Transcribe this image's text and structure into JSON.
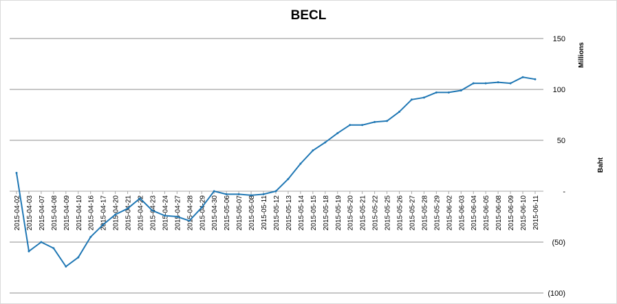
{
  "chart_data": {
    "type": "line",
    "title": "BECL",
    "ylabel": "Baht",
    "y_unit": "Millions",
    "ylim": [
      -100,
      150
    ],
    "y_ticks": [
      150,
      100,
      50,
      0,
      -50,
      -100
    ],
    "y_tick_labels": [
      "150",
      "100",
      "50",
      "-",
      "(50)",
      "(100)"
    ],
    "grid": "horizontal",
    "legend": "none",
    "line_color": "#1f77b4",
    "categories": [
      "2015-04-02",
      "2015-04-03",
      "2015-04-07",
      "2015-04-08",
      "2015-04-09",
      "2015-04-10",
      "2015-04-16",
      "2015-04-17",
      "2015-04-20",
      "2015-04-21",
      "2015-04-22",
      "2015-04-23",
      "2015-04-24",
      "2015-04-27",
      "2015-04-28",
      "2015-04-29",
      "2015-04-30",
      "2015-05-06",
      "2015-05-07",
      "2015-05-08",
      "2015-05-11",
      "2015-05-12",
      "2015-05-13",
      "2015-05-14",
      "2015-05-15",
      "2015-05-18",
      "2015-05-19",
      "2015-05-20",
      "2015-05-21",
      "2015-05-22",
      "2015-05-25",
      "2015-05-26",
      "2015-05-27",
      "2015-05-28",
      "2015-05-29",
      "2015-06-02",
      "2015-06-03",
      "2015-06-04",
      "2015-06-05",
      "2015-06-08",
      "2015-06-09",
      "2015-06-10",
      "2015-06-11"
    ],
    "values": [
      18,
      -59,
      -50,
      -56,
      -74,
      -65,
      -45,
      -33,
      -23,
      -17,
      -7,
      -19,
      -24,
      -25,
      -29,
      -16,
      0,
      -3,
      -3,
      -4,
      -3,
      0,
      12,
      27,
      40,
      48,
      57,
      65,
      65,
      68,
      69,
      78,
      90,
      92,
      97,
      97,
      99,
      106,
      106,
      107,
      106,
      112,
      110
    ]
  }
}
